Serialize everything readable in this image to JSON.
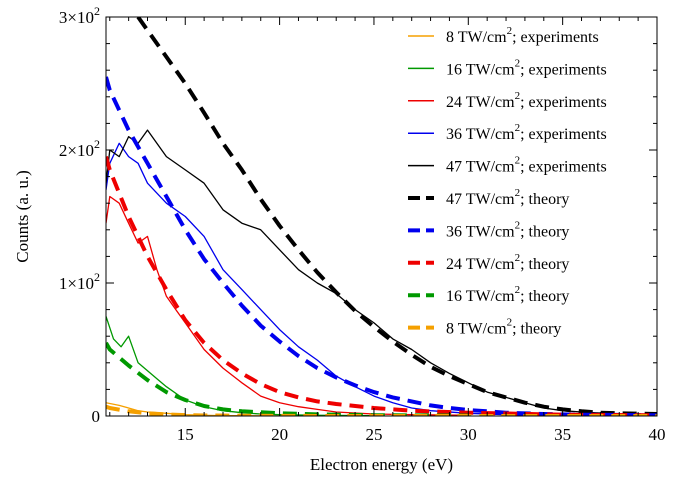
{
  "chart_data": {
    "type": "line",
    "title": "",
    "xlabel": "Electron energy (eV)",
    "ylabel": "Counts (a. u.)",
    "xlim": [
      10.8,
      40
    ],
    "ylim": [
      0,
      300
    ],
    "x_ticks": [
      {
        "value": 15,
        "label": "15"
      },
      {
        "value": 20,
        "label": "20"
      },
      {
        "value": 25,
        "label": "25"
      },
      {
        "value": 30,
        "label": "30"
      },
      {
        "value": 35,
        "label": "35"
      },
      {
        "value": 40,
        "label": "40"
      }
    ],
    "y_ticks": [
      {
        "value": 0,
        "label": "0"
      },
      {
        "value": 100,
        "label": "1×10",
        "exp": "2"
      },
      {
        "value": 200,
        "label": "2×10",
        "exp": "2"
      },
      {
        "value": 300,
        "label": "3×10",
        "exp": "2"
      }
    ],
    "grid": false,
    "legend_position": "top-right",
    "series": [
      {
        "name": "8 TW/cm",
        "sup": "2",
        "suffix": "; experiments",
        "kind": "experiment",
        "color": "#f5a000",
        "x": [
          10.8,
          11.5,
          12.0,
          12.5,
          13.0,
          14.0,
          15.0,
          16.0,
          17.0,
          18.0,
          20.0,
          25.0,
          30.0
        ],
        "y": [
          10,
          8,
          6,
          4,
          3,
          2,
          1,
          0.5,
          0.3,
          0.2,
          0.1,
          0,
          0
        ]
      },
      {
        "name": "16 TW/cm",
        "sup": "2",
        "suffix": "; experiments",
        "kind": "experiment",
        "color": "#009900",
        "x": [
          10.8,
          11.2,
          11.6,
          12.0,
          12.5,
          13.0,
          13.5,
          14.0,
          15.0,
          16.0,
          17.0,
          18.0,
          19.0,
          20.0,
          22.0,
          25.0
        ],
        "y": [
          75,
          58,
          52,
          60,
          40,
          34,
          28,
          22,
          12,
          7,
          4,
          2.5,
          1.5,
          1,
          0.5,
          0.2
        ]
      },
      {
        "name": "24 TW/cm",
        "sup": "2",
        "suffix": "; experiments",
        "kind": "experiment",
        "color": "#ee0000",
        "x": [
          10.8,
          11.0,
          11.5,
          12.0,
          12.5,
          13.0,
          13.5,
          14.0,
          14.5,
          15.0,
          16.0,
          17.0,
          18.0,
          19.0,
          20.0,
          21.0,
          22.0,
          23.0,
          25.0,
          27.0,
          30.0
        ],
        "y": [
          145,
          165,
          160,
          145,
          130,
          135,
          110,
          90,
          80,
          70,
          50,
          36,
          25,
          15,
          10,
          7,
          5,
          3,
          1.5,
          1,
          0.5
        ]
      },
      {
        "name": "36 TW/cm",
        "sup": "2",
        "suffix": "; experiments",
        "kind": "experiment",
        "color": "#0000ee",
        "x": [
          10.8,
          11.0,
          11.5,
          12.0,
          12.5,
          13.0,
          14.0,
          15.0,
          16.0,
          17.0,
          18.0,
          19.0,
          20.0,
          21.0,
          22.0,
          23.0,
          24.0,
          25.0,
          26.0,
          27.0,
          28.0,
          30.0,
          32.0,
          35.0
        ],
        "y": [
          170,
          190,
          205,
          195,
          190,
          175,
          160,
          150,
          135,
          110,
          95,
          80,
          65,
          52,
          42,
          30,
          22,
          15,
          10,
          6,
          4,
          2,
          1,
          0.5
        ]
      },
      {
        "name": "47 TW/cm",
        "sup": "2",
        "suffix": "; experiments",
        "kind": "experiment",
        "color": "#000000",
        "x": [
          10.8,
          11.0,
          11.5,
          12.0,
          12.5,
          13.0,
          14.0,
          15.0,
          16.0,
          17.0,
          18.0,
          19.0,
          20.0,
          21.0,
          22.0,
          23.0,
          24.0,
          25.0,
          26.0,
          27.0,
          28.0,
          29.0,
          30.0,
          31.0,
          32.0,
          33.0,
          34.0,
          35.0,
          36.0,
          38.0,
          40.0
        ],
        "y": [
          175,
          200,
          195,
          210,
          205,
          215,
          195,
          185,
          175,
          155,
          145,
          140,
          125,
          110,
          100,
          92,
          80,
          70,
          58,
          50,
          40,
          32,
          25,
          18,
          14,
          10,
          6,
          4,
          3,
          1.5,
          1
        ]
      },
      {
        "name": "47 TW/cm",
        "sup": "2",
        "suffix": "; theory",
        "kind": "theory",
        "color": "#000000",
        "x": [
          12.5,
          13.0,
          14.0,
          15.0,
          16.0,
          17.0,
          18.0,
          19.0,
          20.0,
          21.0,
          22.0,
          23.0,
          24.0,
          25.0,
          26.0,
          27.0,
          28.0,
          29.0,
          30.0,
          31.0,
          32.0,
          33.0,
          34.0,
          35.0,
          36.0,
          37.0,
          38.0,
          39.0,
          40.0
        ],
        "y": [
          300,
          290,
          270,
          250,
          228,
          205,
          185,
          163,
          143,
          125,
          108,
          93,
          79,
          67,
          56,
          46,
          37,
          30,
          24,
          18,
          14,
          10,
          7,
          5,
          3.5,
          2.5,
          2,
          1.8,
          1.5
        ]
      },
      {
        "name": "36 TW/cm",
        "sup": "2",
        "suffix": "; theory",
        "kind": "theory",
        "color": "#0000ee",
        "x": [
          10.8,
          11.0,
          12.0,
          13.0,
          14.0,
          15.0,
          16.0,
          17.0,
          18.0,
          19.0,
          20.0,
          21.0,
          22.0,
          23.0,
          24.0,
          25.0,
          26.0,
          27.0,
          28.0,
          29.0,
          30.0,
          31.0,
          32.0,
          34.0,
          36.0,
          38.0,
          40.0
        ],
        "y": [
          255,
          245,
          215,
          190,
          165,
          140,
          118,
          100,
          83,
          68,
          56,
          45,
          36,
          29,
          23,
          18,
          14,
          11,
          8,
          6,
          4.5,
          3.5,
          2.5,
          1.5,
          1,
          0.8,
          0.5
        ]
      },
      {
        "name": "24 TW/cm",
        "sup": "2",
        "suffix": "; theory",
        "kind": "theory",
        "color": "#ee0000",
        "x": [
          10.8,
          11.0,
          12.0,
          13.0,
          14.0,
          15.0,
          16.0,
          17.0,
          18.0,
          19.0,
          20.0,
          21.0,
          22.0,
          23.0,
          25.0,
          27.0,
          30.0,
          35.0,
          40.0
        ],
        "y": [
          195,
          185,
          150,
          120,
          95,
          72,
          55,
          42,
          32,
          24,
          18,
          14,
          11,
          9,
          6,
          4,
          2.5,
          1,
          0.5
        ]
      },
      {
        "name": "16 TW/cm",
        "sup": "2",
        "suffix": "; theory",
        "kind": "theory",
        "color": "#009900",
        "x": [
          10.8,
          11.0,
          12.0,
          13.0,
          14.0,
          15.0,
          16.0,
          17.0,
          18.0,
          20.0,
          22.0,
          25.0,
          30.0
        ],
        "y": [
          55,
          50,
          38,
          27,
          18,
          12,
          7.5,
          5,
          3.5,
          2,
          1.2,
          0.6,
          0.3
        ]
      },
      {
        "name": "8 TW/cm",
        "sup": "2",
        "suffix": "; theory",
        "kind": "theory",
        "color": "#f5a000",
        "x": [
          10.8,
          11.0,
          12.0,
          13.0,
          14.0,
          15.0,
          16.0,
          18.0,
          20.0,
          25.0,
          30.0,
          40.0
        ],
        "y": [
          7,
          6,
          3.5,
          2,
          1.2,
          0.7,
          0.4,
          0.2,
          0.1,
          0,
          0,
          0
        ]
      }
    ]
  }
}
